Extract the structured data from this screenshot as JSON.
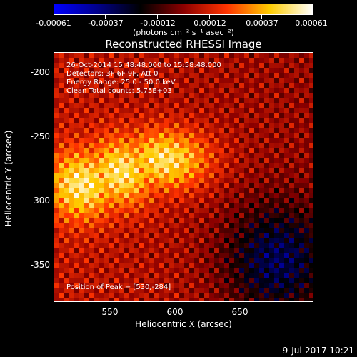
{
  "colorbar": {
    "tick_labels": [
      "-0.00061",
      "-0.00037",
      "-0.00012",
      "0.00012",
      "0.00037",
      "0.00061"
    ],
    "units": "(photons cm⁻² s⁻¹ asec⁻²)",
    "colors": [
      "#0000ff",
      "#00008b",
      "#000000",
      "#8b0000",
      "#ff3300",
      "#ffcc00",
      "#ffffff"
    ]
  },
  "title": "Reconstructed RHESSI Image",
  "info": {
    "time": "26-Oct-2014 15:48:48.000 to 15:58:48.000",
    "detectors": "Detectors: 3F 6F 9F, Att 0",
    "energy": "Energy Range: 25.0 - 50.0 keV",
    "clean": "Clean    Total counts: 5.75E+03",
    "peak": "Position of Peak = [530,-284]"
  },
  "axes": {
    "xlabel": "Heliocentric X (arcsec)",
    "ylabel": "Heliocentric Y (arcsec)",
    "xticks": [
      "550",
      "600",
      "650"
    ],
    "yticks": [
      "-200",
      "-250",
      "-300",
      "-350"
    ]
  },
  "footer_date": "9-Jul-2017 10:21"
}
